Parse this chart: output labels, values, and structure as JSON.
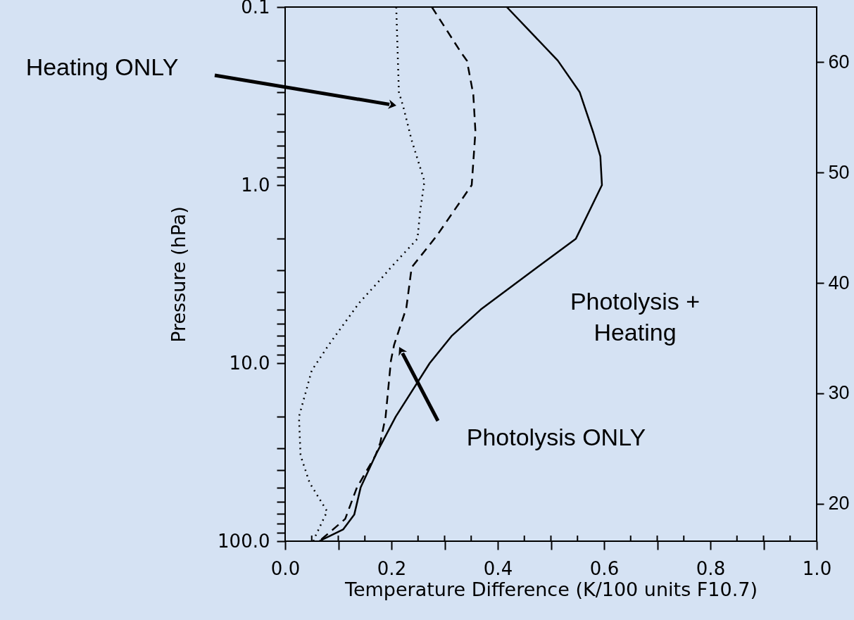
{
  "chart_data": {
    "type": "line",
    "xlabel": "Temperature Difference (K/100 units F10.7)",
    "ylabel": "Pressure (hPa)",
    "log": "y",
    "xlim": [
      0,
      1
    ],
    "xticks": [
      {
        "value": 0,
        "label": "0.0"
      },
      {
        "value": 0.05,
        "label": null
      },
      {
        "value": 0.1,
        "label": null
      },
      {
        "value": 0.15,
        "label": null
      },
      {
        "value": 0.2,
        "label": "0.2"
      },
      {
        "value": 0.25,
        "label": null
      },
      {
        "value": 0.3,
        "label": null
      },
      {
        "value": 0.35,
        "label": null
      },
      {
        "value": 0.4,
        "label": "0.4"
      },
      {
        "value": 0.45,
        "label": null
      },
      {
        "value": 0.5,
        "label": null
      },
      {
        "value": 0.55,
        "label": null
      },
      {
        "value": 0.6,
        "label": "0.6"
      },
      {
        "value": 0.65,
        "label": null
      },
      {
        "value": 0.7,
        "label": null
      },
      {
        "value": 0.75,
        "label": null
      },
      {
        "value": 0.8,
        "label": "0.8"
      },
      {
        "value": 0.85,
        "label": null
      },
      {
        "value": 0.9,
        "label": null
      },
      {
        "value": 0.95,
        "label": null
      },
      {
        "value": 1,
        "label": "1.0"
      }
    ],
    "ylim": [
      100,
      0.1
    ],
    "yticks": [
      0.1,
      {
        "value": 0.2,
        "label": null
      },
      {
        "value": 0.3,
        "label": null
      },
      {
        "value": 0.4,
        "label": null
      },
      {
        "value": 0.5,
        "label": null
      },
      {
        "value": 0.6,
        "label": null
      },
      {
        "value": 0.7,
        "label": null
      },
      {
        "value": 0.8,
        "label": null
      },
      {
        "value": 0.9,
        "label": null
      },
      {
        "value": 1,
        "label": "1.0"
      },
      {
        "value": 2,
        "label": null
      },
      {
        "value": 3,
        "label": null
      },
      {
        "value": 4,
        "label": null
      },
      {
        "value": 5,
        "label": null
      },
      {
        "value": 6,
        "label": null
      },
      {
        "value": 7,
        "label": null
      },
      {
        "value": 8,
        "label": null
      },
      {
        "value": 9,
        "label": null
      },
      {
        "value": 10,
        "label": "10.0"
      },
      {
        "value": 20,
        "label": null
      },
      {
        "value": 30,
        "label": null
      },
      {
        "value": 40,
        "label": null
      },
      {
        "value": 50,
        "label": null
      },
      {
        "value": 60,
        "label": null
      },
      {
        "value": 70,
        "label": null
      },
      {
        "value": 80,
        "label": null
      },
      {
        "value": 90,
        "label": null
      },
      {
        "value": 100,
        "label": "100.0"
      }
    ],
    "y2lim": [
      16.6,
      65.0
    ],
    "y2ticks": [
      20,
      30,
      40,
      50,
      60
    ],
    "series": [
      {
        "color": "#000000",
        "line_style": "solid",
        "x": [
          0.417,
          0.513,
          0.554,
          0.58,
          0.593,
          0.596,
          0.547,
          0.474,
          0.368,
          0.314,
          0.272,
          0.208,
          0.172,
          0.142,
          0.13,
          0.109,
          0.064
        ],
        "values": [
          0.1,
          0.2,
          0.3,
          0.51,
          0.69,
          1.0,
          2.0,
          2.9,
          5.0,
          7.0,
          10,
          20,
          32,
          50,
          71,
          86,
          100
        ]
      },
      {
        "color": "#000000",
        "line_style": "dashed",
        "x": [
          0.276,
          0.331,
          0.342,
          0.354,
          0.358,
          0.351,
          0.285,
          0.238,
          0.228,
          0.205,
          0.199,
          0.189,
          0.179,
          0.17,
          0.135,
          0.113,
          0.09,
          0.064
        ],
        "values": [
          0.1,
          0.18,
          0.2,
          0.31,
          0.5,
          1.0,
          1.93,
          2.9,
          4.9,
          7.9,
          9.7,
          20,
          28,
          33,
          50,
          75,
          86,
          100
        ]
      },
      {
        "color": "#000000",
        "line_style": "dotted",
        "x": [
          0.209,
          0.214,
          0.223,
          0.238,
          0.262,
          0.261,
          0.254,
          0.249,
          0.199,
          0.179,
          0.139,
          0.082,
          0.05,
          0.026,
          0.029,
          0.046,
          0.079,
          0.056,
          0.053
        ],
        "values": [
          0.1,
          0.3,
          0.37,
          0.56,
          0.95,
          1.0,
          1.4,
          2.0,
          2.9,
          3.4,
          4.6,
          7.9,
          11,
          20,
          33,
          47,
          68,
          95,
          100
        ]
      }
    ],
    "annotations": [
      "Heating ONLY",
      "Photolysis ONLY",
      "Photolysis +\nHeating"
    ]
  }
}
